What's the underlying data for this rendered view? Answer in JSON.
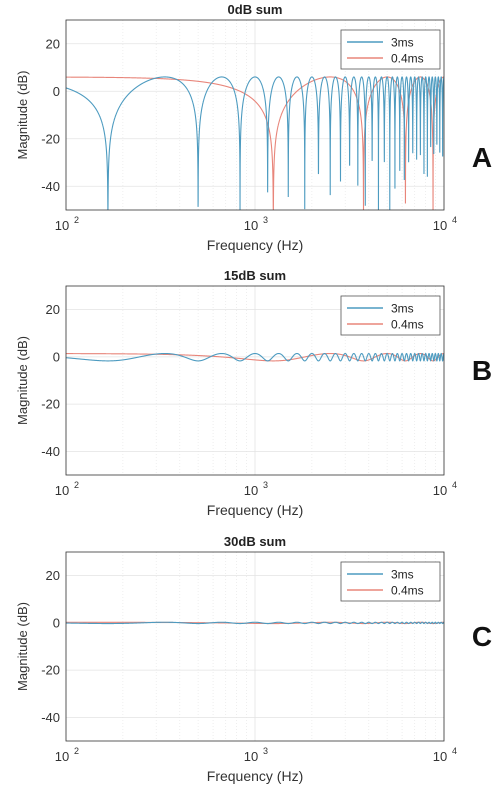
{
  "figure": {
    "panels": [
      {
        "letter": "A",
        "title": "0dB sum",
        "xlabel": "Frequency (Hz)",
        "ylabel": "Magnitude (dB)",
        "ytick_labels": [
          "20",
          "0",
          "-20",
          "-40"
        ],
        "xtick_labels": [
          {
            "base": "10",
            "exp": "2"
          },
          {
            "base": "10",
            "exp": "3"
          },
          {
            "base": "10",
            "exp": "4"
          }
        ],
        "legend": [
          "3ms",
          "0.4ms"
        ]
      },
      {
        "letter": "B",
        "title": "15dB sum",
        "xlabel": "Frequency (Hz)",
        "ylabel": "Magnitude (dB)",
        "ytick_labels": [
          "20",
          "0",
          "-20",
          "-40"
        ],
        "xtick_labels": [
          {
            "base": "10",
            "exp": "2"
          },
          {
            "base": "10",
            "exp": "3"
          },
          {
            "base": "10",
            "exp": "4"
          }
        ],
        "legend": [
          "3ms",
          "0.4ms"
        ]
      },
      {
        "letter": "C",
        "title": "30dB sum",
        "xlabel": "Frequency (Hz)",
        "ylabel": "Magnitude (dB)",
        "ytick_labels": [
          "20",
          "0",
          "-20",
          "-40"
        ],
        "xtick_labels": [
          {
            "base": "10",
            "exp": "2"
          },
          {
            "base": "10",
            "exp": "3"
          },
          {
            "base": "10",
            "exp": "4"
          }
        ],
        "legend": [
          "3ms",
          "0.4ms"
        ]
      }
    ]
  },
  "colors": {
    "series_3ms": "#4d9bc0",
    "series_04ms": "#e8857a",
    "grid": "#e3e3e3",
    "axis": "#333333"
  },
  "chart_data": [
    {
      "type": "line",
      "title": "0dB sum",
      "xlabel": "Frequency (Hz)",
      "ylabel": "Magnitude (dB)",
      "x_scale": "log",
      "xlim": [
        100,
        10000
      ],
      "ylim": [
        -50,
        30
      ],
      "yticks": [
        -40,
        -20,
        0,
        20
      ],
      "xticks": [
        100,
        1000,
        10000
      ],
      "grid": true,
      "legend_position": "top-right",
      "series": [
        {
          "name": "3ms",
          "delay_ms": 3.0,
          "level_diff_db": 0,
          "min_db": -43,
          "notch_freqs_hz": [
            167,
            500,
            833,
            1167,
            1500,
            1833,
            2167,
            2500,
            2833,
            3167,
            3500,
            3833
          ]
        },
        {
          "name": "0.4ms",
          "delay_ms": 0.4,
          "level_diff_db": 0,
          "min_db": -43,
          "notch_freqs_hz": [
            1250,
            3750,
            6250,
            8750
          ]
        }
      ]
    },
    {
      "type": "line",
      "title": "15dB sum",
      "xlabel": "Frequency (Hz)",
      "ylabel": "Magnitude (dB)",
      "x_scale": "log",
      "xlim": [
        100,
        10000
      ],
      "ylim": [
        -50,
        30
      ],
      "yticks": [
        -40,
        -20,
        0,
        20
      ],
      "xticks": [
        100,
        1000,
        10000
      ],
      "grid": true,
      "legend_position": "top-right",
      "series": [
        {
          "name": "3ms",
          "delay_ms": 3.0,
          "level_diff_db": 15,
          "max_db": 1.4,
          "min_db": -1.6
        },
        {
          "name": "0.4ms",
          "delay_ms": 0.4,
          "level_diff_db": 15,
          "max_db": 1.4,
          "min_db": -1.6
        }
      ]
    },
    {
      "type": "line",
      "title": "30dB sum",
      "xlabel": "Frequency (Hz)",
      "ylabel": "Magnitude (dB)",
      "x_scale": "log",
      "xlim": [
        100,
        10000
      ],
      "ylim": [
        -50,
        30
      ],
      "yticks": [
        -40,
        -20,
        0,
        20
      ],
      "xticks": [
        100,
        1000,
        10000
      ],
      "grid": true,
      "legend_position": "top-right",
      "series": [
        {
          "name": "3ms",
          "delay_ms": 3.0,
          "level_diff_db": 30,
          "max_db": 0.3,
          "min_db": -0.3
        },
        {
          "name": "0.4ms",
          "delay_ms": 0.4,
          "level_diff_db": 30,
          "max_db": 0.3,
          "min_db": -0.3
        }
      ]
    }
  ]
}
